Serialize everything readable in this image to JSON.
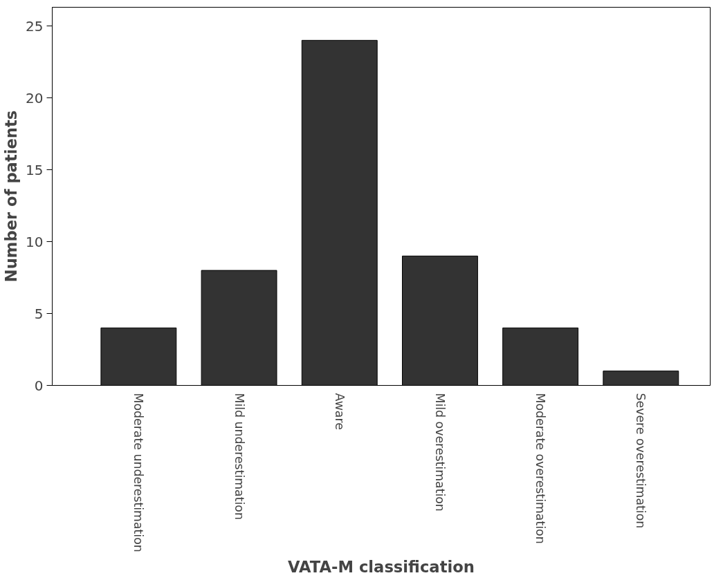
{
  "chart_data": {
    "type": "bar",
    "xlabel": "VATA-M classification",
    "ylabel": "Number of patients",
    "categories": [
      "Moderate underestimation",
      "Mild underestimation",
      "Aware",
      "Mild overestimation",
      "Moderate overestimation",
      "Severe overestimation"
    ],
    "values": [
      4,
      8,
      24,
      9,
      4,
      1
    ],
    "color": "#333333",
    "ylim": [
      0,
      26.3
    ],
    "yticks": [
      0,
      5,
      10,
      15,
      20,
      25
    ],
    "grid": false
  }
}
